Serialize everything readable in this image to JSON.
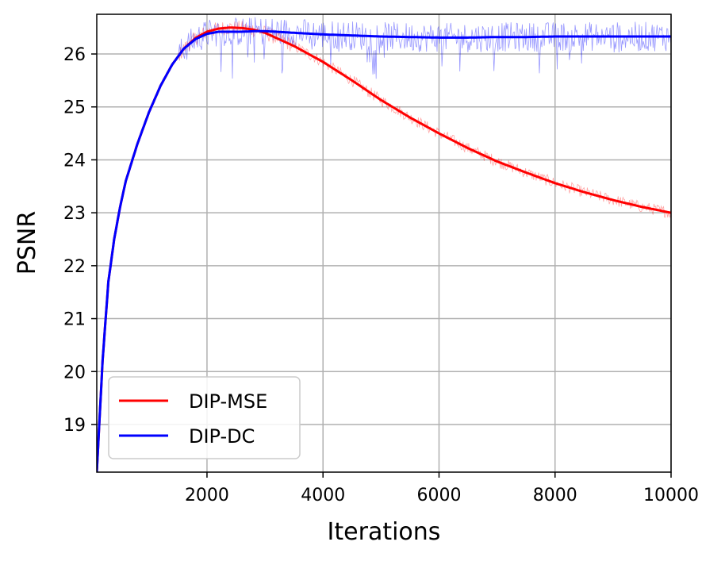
{
  "chart_data": {
    "type": "line",
    "title": "",
    "xlabel": "Iterations",
    "ylabel": "PSNR",
    "xlim": [
      100,
      10000
    ],
    "ylim": [
      18.1,
      26.75
    ],
    "xticks": [
      2000,
      4000,
      6000,
      8000,
      10000
    ],
    "xtick_labels": [
      "2000",
      "4000",
      "6000",
      "8000",
      "10000"
    ],
    "yticks": [
      19,
      20,
      21,
      22,
      23,
      24,
      25,
      26
    ],
    "ytick_labels": [
      "19",
      "20",
      "21",
      "22",
      "23",
      "24",
      "25",
      "26"
    ],
    "grid": true,
    "legend_position": "bottom-left",
    "series": [
      {
        "name": "DIP-MSE",
        "color": "#ff0000",
        "x": [
          100,
          200,
          300,
          400,
          500,
          600,
          800,
          1000,
          1200,
          1400,
          1600,
          1800,
          2000,
          2200,
          2400,
          2600,
          2800,
          3000,
          3200,
          3500,
          4000,
          4500,
          5000,
          5500,
          6000,
          6500,
          7000,
          7500,
          8000,
          8500,
          9000,
          9500,
          10000
        ],
        "values": [
          18.1,
          20.2,
          21.7,
          22.5,
          23.1,
          23.6,
          24.3,
          24.9,
          25.4,
          25.8,
          26.1,
          26.3,
          26.42,
          26.48,
          26.5,
          26.49,
          26.46,
          26.4,
          26.3,
          26.15,
          25.85,
          25.5,
          25.13,
          24.8,
          24.5,
          24.22,
          23.97,
          23.76,
          23.56,
          23.39,
          23.24,
          23.11,
          23.0
        ]
      },
      {
        "name": "DIP-DC",
        "color": "#0000ff",
        "x": [
          100,
          200,
          300,
          400,
          500,
          600,
          800,
          1000,
          1200,
          1400,
          1600,
          1800,
          2000,
          2200,
          2400,
          2600,
          2800,
          3000,
          3200,
          3500,
          4000,
          4500,
          5000,
          5500,
          6000,
          6500,
          7000,
          7500,
          8000,
          8500,
          9000,
          9500,
          10000
        ],
        "values": [
          18.1,
          20.2,
          21.7,
          22.5,
          23.1,
          23.6,
          24.3,
          24.9,
          25.4,
          25.8,
          26.1,
          26.28,
          26.38,
          26.42,
          26.42,
          26.42,
          26.43,
          26.43,
          26.42,
          26.4,
          26.37,
          26.35,
          26.33,
          26.32,
          26.31,
          26.31,
          26.32,
          26.32,
          26.33,
          26.33,
          26.33,
          26.33,
          26.33
        ]
      }
    ]
  }
}
